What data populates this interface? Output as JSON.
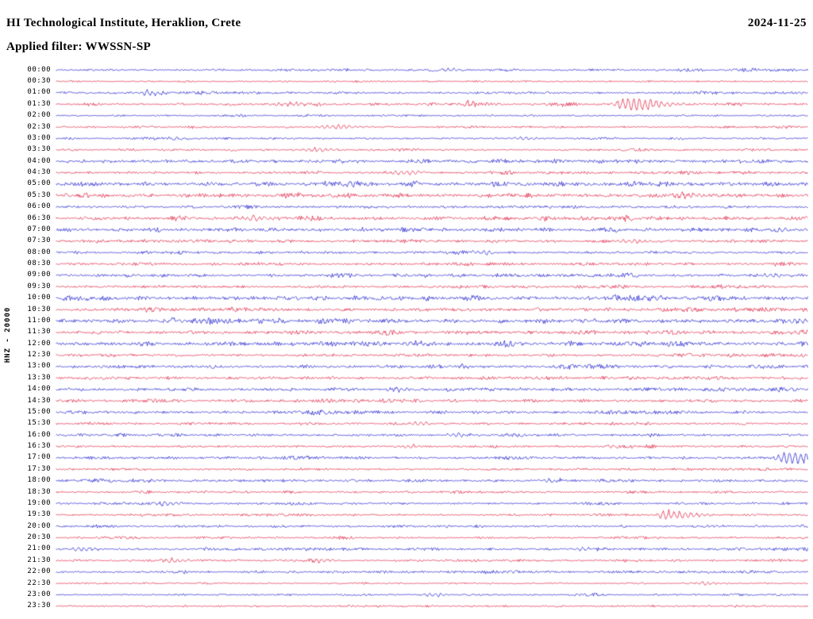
{
  "header": {
    "title": "HI Technological Institute, Heraklion, Crete",
    "date": "2024-11-25",
    "filter_line": "Applied filter: WWSSN-SP"
  },
  "chart_data": {
    "type": "line",
    "subtype": "helicorder-seismogram",
    "title": "HI Technological Institute, Heraklion, Crete",
    "date_label": "2024-11-25",
    "filter_label": "Applied filter: WWSSN-SP",
    "channel_label": "HNZ - 20000",
    "row_duration_minutes": 30,
    "palette": {
      "b": "#1010cc",
      "r": "#dd1133"
    },
    "rows": [
      {
        "t": "00:00",
        "c": "b",
        "a": 1.0,
        "e": [
          {
            "p": 0.52,
            "a": 2,
            "w": 6
          }
        ]
      },
      {
        "t": "00:30",
        "c": "r",
        "a": 0.7,
        "e": []
      },
      {
        "t": "01:00",
        "c": "b",
        "a": 1.1,
        "e": [
          {
            "p": 0.12,
            "a": 2.5,
            "w": 10
          }
        ]
      },
      {
        "t": "01:30",
        "c": "r",
        "a": 1.2,
        "e": [
          {
            "p": 0.55,
            "a": 4,
            "w": 4
          },
          {
            "p": 0.755,
            "a": 9,
            "w": 8
          },
          {
            "p": 0.31,
            "a": 2,
            "w": 12
          }
        ]
      },
      {
        "t": "02:00",
        "c": "b",
        "a": 0.8,
        "e": []
      },
      {
        "t": "02:30",
        "c": "r",
        "a": 0.9,
        "e": [
          {
            "p": 0.37,
            "a": 2,
            "w": 14
          }
        ]
      },
      {
        "t": "03:00",
        "c": "b",
        "a": 0.9,
        "e": [
          {
            "p": 0.62,
            "a": 1.5,
            "w": 10
          }
        ]
      },
      {
        "t": "03:30",
        "c": "r",
        "a": 1.0,
        "e": [
          {
            "p": 0.345,
            "a": 2.2,
            "w": 10
          }
        ]
      },
      {
        "t": "04:00",
        "c": "b",
        "a": 1.7,
        "e": []
      },
      {
        "t": "04:30",
        "c": "r",
        "a": 1.2,
        "e": [
          {
            "p": 0.46,
            "a": 2.5,
            "w": 12
          }
        ]
      },
      {
        "t": "05:00",
        "c": "b",
        "a": 2.0,
        "e": []
      },
      {
        "t": "05:30",
        "c": "r",
        "a": 1.9,
        "e": [
          {
            "p": 0.84,
            "a": 2.5,
            "w": 10
          }
        ]
      },
      {
        "t": "06:00",
        "c": "b",
        "a": 1.3,
        "e": []
      },
      {
        "t": "06:30",
        "c": "r",
        "a": 1.8,
        "e": [
          {
            "p": 0.26,
            "a": 2.2,
            "w": 10
          }
        ]
      },
      {
        "t": "07:00",
        "c": "b",
        "a": 1.7,
        "e": []
      },
      {
        "t": "07:30",
        "c": "r",
        "a": 1.4,
        "e": [
          {
            "p": 0.76,
            "a": 2,
            "w": 10
          }
        ]
      },
      {
        "t": "08:00",
        "c": "b",
        "a": 1.2,
        "e": [
          {
            "p": 0.565,
            "a": 2.5,
            "w": 8
          }
        ]
      },
      {
        "t": "08:30",
        "c": "r",
        "a": 1.3,
        "e": []
      },
      {
        "t": "09:00",
        "c": "b",
        "a": 1.5,
        "e": [
          {
            "p": 0.95,
            "a": 2,
            "w": 8
          }
        ]
      },
      {
        "t": "09:30",
        "c": "r",
        "a": 1.2,
        "e": []
      },
      {
        "t": "10:00",
        "c": "b",
        "a": 1.9,
        "e": []
      },
      {
        "t": "10:30",
        "c": "r",
        "a": 1.6,
        "e": []
      },
      {
        "t": "11:00",
        "c": "b",
        "a": 2.0,
        "e": [
          {
            "p": 0.985,
            "a": 2.5,
            "w": 8
          }
        ]
      },
      {
        "t": "11:30",
        "c": "r",
        "a": 1.6,
        "e": []
      },
      {
        "t": "12:00",
        "c": "b",
        "a": 1.8,
        "e": [
          {
            "p": 0.47,
            "a": 2.5,
            "w": 8
          }
        ]
      },
      {
        "t": "12:30",
        "c": "r",
        "a": 1.3,
        "e": []
      },
      {
        "t": "13:00",
        "c": "b",
        "a": 1.5,
        "e": []
      },
      {
        "t": "13:30",
        "c": "r",
        "a": 1.4,
        "e": []
      },
      {
        "t": "14:00",
        "c": "b",
        "a": 1.5,
        "e": [
          {
            "p": 0.45,
            "a": 2,
            "w": 8
          }
        ]
      },
      {
        "t": "14:30",
        "c": "r",
        "a": 1.4,
        "e": [
          {
            "p": 0.4,
            "a": 2.2,
            "w": 8
          }
        ]
      },
      {
        "t": "15:00",
        "c": "b",
        "a": 1.3,
        "e": []
      },
      {
        "t": "15:30",
        "c": "r",
        "a": 1.1,
        "e": [
          {
            "p": 0.48,
            "a": 2,
            "w": 10
          }
        ]
      },
      {
        "t": "16:00",
        "c": "b",
        "a": 1.2,
        "e": [
          {
            "p": 0.53,
            "a": 1.8,
            "w": 8
          }
        ]
      },
      {
        "t": "16:30",
        "c": "r",
        "a": 1.1,
        "e": [
          {
            "p": 0.47,
            "a": 2,
            "w": 8
          }
        ]
      },
      {
        "t": "17:00",
        "c": "b",
        "a": 1.1,
        "e": [
          {
            "p": 0.975,
            "a": 7,
            "w": 12
          }
        ]
      },
      {
        "t": "17:30",
        "c": "r",
        "a": 1.0,
        "e": []
      },
      {
        "t": "18:00",
        "c": "b",
        "a": 1.2,
        "e": [
          {
            "p": 0.655,
            "a": 2,
            "w": 8
          }
        ]
      },
      {
        "t": "18:30",
        "c": "r",
        "a": 1.0,
        "e": []
      },
      {
        "t": "19:00",
        "c": "b",
        "a": 1.1,
        "e": [
          {
            "p": 0.145,
            "a": 1.8,
            "w": 8
          }
        ]
      },
      {
        "t": "19:30",
        "c": "r",
        "a": 1.0,
        "e": [
          {
            "p": 0.81,
            "a": 5,
            "w": 7
          }
        ]
      },
      {
        "t": "20:00",
        "c": "b",
        "a": 1.1,
        "e": []
      },
      {
        "t": "20:30",
        "c": "r",
        "a": 0.9,
        "e": []
      },
      {
        "t": "21:00",
        "c": "b",
        "a": 1.2,
        "e": [
          {
            "p": 0.035,
            "a": 2.5,
            "w": 10
          },
          {
            "p": 0.7,
            "a": 2,
            "w": 8
          }
        ]
      },
      {
        "t": "21:30",
        "c": "r",
        "a": 1.0,
        "e": [
          {
            "p": 0.155,
            "a": 2.2,
            "w": 8
          },
          {
            "p": 0.35,
            "a": 2,
            "w": 8
          }
        ]
      },
      {
        "t": "22:00",
        "c": "b",
        "a": 1.1,
        "e": []
      },
      {
        "t": "22:30",
        "c": "r",
        "a": 0.8,
        "e": [
          {
            "p": 0.86,
            "a": 1.8,
            "w": 8
          }
        ]
      },
      {
        "t": "23:00",
        "c": "b",
        "a": 0.7,
        "e": [
          {
            "p": 0.5,
            "a": 2,
            "w": 8
          }
        ]
      },
      {
        "t": "23:30",
        "c": "r",
        "a": 0.8,
        "e": []
      }
    ]
  }
}
